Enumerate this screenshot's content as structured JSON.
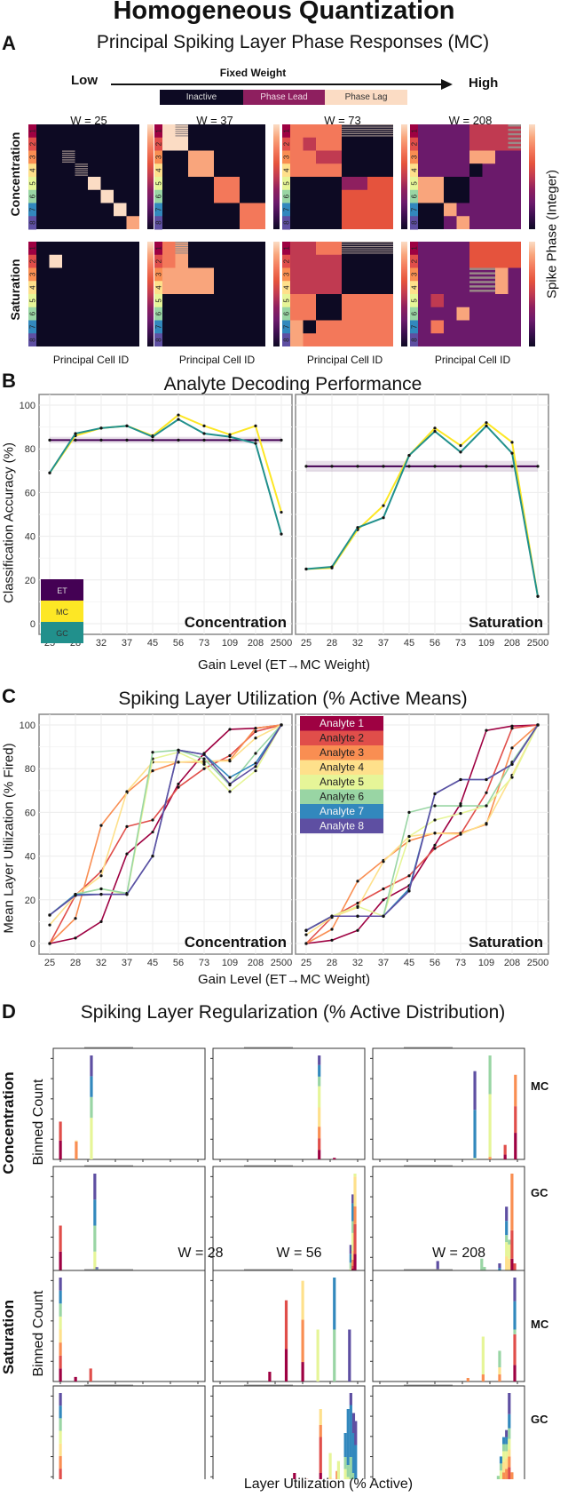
{
  "title": "Homogeneous Quantization",
  "panelA": {
    "letter": "A",
    "title": "Principal Spiking Layer Phase Responses (MC)",
    "arrow": {
      "low": "Low",
      "high": "High",
      "label": "Fixed Weight"
    },
    "state_legend": [
      {
        "label": "Inactive",
        "color": "#0d0a23"
      },
      {
        "label": "Phase Lead",
        "color": "#8e1f5f"
      },
      {
        "label": "Phase Lag",
        "color": "#fbdcc4"
      }
    ],
    "columns": [
      "W = 25",
      "W = 37",
      "W = 73",
      "W = 208"
    ],
    "rows": [
      "Concentration",
      "Saturation"
    ],
    "xlabel": "Principal Cell ID",
    "colorbar_label": "Spike Phase (Integer)",
    "analyte_ticks": [
      "1",
      "2",
      "3",
      "4",
      "5",
      "6",
      "7",
      "8"
    ]
  },
  "panelB": {
    "letter": "B",
    "title": "Analyte Decoding Performance",
    "ylabel": "Classification Accuracy (%)",
    "xlabel": "Gain Level (ET→MC Weight)",
    "legend": [
      {
        "label": "ET",
        "color": "#440154"
      },
      {
        "label": "MC",
        "color": "#fde725"
      },
      {
        "label": "GC",
        "color": "#21908c"
      }
    ]
  },
  "panelC": {
    "letter": "C",
    "title": "Spiking Layer Utilization (% Active Means)",
    "ylabel": "Mean Layer Utilization (% Fired)",
    "xlabel": "Gain Level (ET→MC Weight)",
    "legend": [
      {
        "label": "Analyte 1",
        "color": "#9e0142"
      },
      {
        "label": "Analyte 2",
        "color": "#e04e4a"
      },
      {
        "label": "Analyte 3",
        "color": "#f98e52"
      },
      {
        "label": "Analyte 4",
        "color": "#fee08b"
      },
      {
        "label": "Analyte 5",
        "color": "#e6f598"
      },
      {
        "label": "Analyte 6",
        "color": "#99d5a4"
      },
      {
        "label": "Analyte 7",
        "color": "#3288bd"
      },
      {
        "label": "Analyte 8",
        "color": "#5e4fa2"
      }
    ]
  },
  "panelD": {
    "letter": "D",
    "title": "Spiking Layer Regularization (% Active Distribution)",
    "ylabel": "Binned Count",
    "xlabel": "Layer Utilization (% Active)",
    "columns": [
      "W = 28",
      "W = 56",
      "W = 208"
    ],
    "rows": [
      "Concentration",
      "Saturation"
    ],
    "layers": [
      "MC",
      "GC"
    ]
  },
  "chart_data": [
    {
      "type": "line",
      "title": "Analyte Decoding Performance - Concentration",
      "facet": "Concentration",
      "categories": [
        "25",
        "28",
        "32",
        "37",
        "45",
        "56",
        "73",
        "109",
        "208",
        "2500"
      ],
      "xlabel": "Gain Level (ET→MC Weight)",
      "ylabel": "Classification Accuracy (%)",
      "ylim": [
        0,
        100
      ],
      "yticks": [
        0,
        20,
        40,
        60,
        80,
        100
      ],
      "grid": true,
      "legend_position": "bottom-left",
      "series": [
        {
          "name": "ET",
          "color": "#440154",
          "values": [
            84,
            84,
            84,
            84,
            84,
            84,
            84,
            84,
            84,
            84
          ],
          "band": 1.5
        },
        {
          "name": "MC",
          "color": "#fde725",
          "values": [
            69,
            86,
            89.5,
            90.5,
            86,
            95.5,
            90.5,
            86.5,
            90.5,
            51
          ]
        },
        {
          "name": "GC",
          "color": "#21908c",
          "values": [
            69,
            87,
            89.5,
            90.5,
            85.5,
            93.5,
            87,
            85.5,
            82.5,
            41
          ]
        }
      ]
    },
    {
      "type": "line",
      "title": "Analyte Decoding Performance - Saturation",
      "facet": "Saturation",
      "categories": [
        "25",
        "28",
        "32",
        "37",
        "45",
        "56",
        "73",
        "109",
        "208",
        "2500"
      ],
      "xlabel": "Gain Level (ET→MC Weight)",
      "ylabel": "Classification Accuracy (%)",
      "ylim": [
        0,
        100
      ],
      "grid": true,
      "series": [
        {
          "name": "ET",
          "color": "#440154",
          "values": [
            72,
            72,
            72,
            72,
            72,
            72,
            72,
            72,
            72,
            72
          ],
          "band": 2.5
        },
        {
          "name": "MC",
          "color": "#fde725",
          "values": [
            25,
            25.5,
            43,
            54,
            77,
            89.5,
            81.5,
            92,
            83,
            12.5
          ]
        },
        {
          "name": "GC",
          "color": "#21908c",
          "values": [
            25,
            26,
            44,
            48.5,
            77,
            88,
            78.5,
            90.5,
            78,
            12.5
          ]
        }
      ]
    },
    {
      "type": "line",
      "title": "Spiking Layer Utilization - Concentration",
      "facet": "Concentration",
      "categories": [
        "25",
        "28",
        "32",
        "37",
        "45",
        "56",
        "73",
        "109",
        "208",
        "2500"
      ],
      "xlabel": "Gain Level (ET→MC Weight)",
      "ylabel": "Mean Layer Utilization (% Fired)",
      "ylim": [
        0,
        100
      ],
      "yticks": [
        0,
        20,
        40,
        60,
        80,
        100
      ],
      "grid": true,
      "legend_position": "top-left",
      "series": [
        {
          "name": "Analyte 1",
          "color": "#9e0142",
          "values": [
            0,
            2.5,
            10,
            41,
            51,
            73,
            87,
            98,
            98.5,
            100
          ]
        },
        {
          "name": "Analyte 2",
          "color": "#e04e4a",
          "values": [
            0,
            22,
            33,
            53.5,
            56.5,
            71.5,
            80,
            86,
            97,
            100
          ]
        },
        {
          "name": "Analyte 3",
          "color": "#f98e52",
          "values": [
            0,
            11.5,
            54,
            69,
            79,
            83,
            83,
            84,
            98.5,
            100
          ]
        },
        {
          "name": "Analyte 4",
          "color": "#fee08b",
          "values": [
            8.5,
            22,
            31,
            69.5,
            83,
            83,
            83.5,
            83.5,
            94,
            100
          ]
        },
        {
          "name": "Analyte 5",
          "color": "#e6f598",
          "values": [
            13,
            22.5,
            25,
            22.5,
            84.5,
            87.5,
            82,
            69.5,
            79,
            100
          ]
        },
        {
          "name": "Analyte 6",
          "color": "#99d5a4",
          "values": [
            13,
            22.5,
            25,
            23,
            87.5,
            88.5,
            84.5,
            72.5,
            87,
            100
          ]
        },
        {
          "name": "Analyte 7",
          "color": "#3288bd",
          "values": [
            13,
            22.5,
            22.5,
            22.5,
            40,
            88.5,
            86.5,
            76,
            82.5,
            100
          ]
        },
        {
          "name": "Analyte 8",
          "color": "#5e4fa2",
          "values": [
            13,
            22,
            22.5,
            22.5,
            40,
            88.5,
            86.5,
            73,
            81,
            100
          ]
        }
      ]
    },
    {
      "type": "line",
      "title": "Spiking Layer Utilization - Saturation",
      "facet": "Saturation",
      "categories": [
        "25",
        "28",
        "32",
        "37",
        "45",
        "56",
        "73",
        "109",
        "208",
        "2500"
      ],
      "xlabel": "Gain Level (ET→MC Weight)",
      "ylabel": "Mean Layer Utilization (% Fired)",
      "ylim": [
        0,
        100
      ],
      "grid": true,
      "series": [
        {
          "name": "Analyte 1",
          "color": "#9e0142",
          "values": [
            0,
            1.5,
            6,
            20,
            26.5,
            45,
            64,
            97.5,
            99.5,
            100
          ]
        },
        {
          "name": "Analyte 2",
          "color": "#e04e4a",
          "values": [
            0,
            12,
            18.5,
            25,
            31,
            43.5,
            50,
            69,
            98.5,
            100
          ]
        },
        {
          "name": "Analyte 3",
          "color": "#f98e52",
          "values": [
            0,
            6.5,
            28.5,
            38,
            47,
            50.5,
            50.5,
            54.5,
            89.5,
            100
          ]
        },
        {
          "name": "Analyte 4",
          "color": "#fee08b",
          "values": [
            4,
            12,
            16.5,
            37.5,
            49,
            50.5,
            50,
            55,
            77,
            100
          ]
        },
        {
          "name": "Analyte 5",
          "color": "#e6f598",
          "values": [
            6,
            12.5,
            17,
            12.5,
            49,
            56.5,
            59.5,
            63,
            76,
            100
          ]
        },
        {
          "name": "Analyte 6",
          "color": "#99d5a4",
          "values": [
            6,
            12.5,
            12.5,
            12.5,
            60,
            63,
            63,
            63,
            83,
            100
          ]
        },
        {
          "name": "Analyte 7",
          "color": "#3288bd",
          "values": [
            6,
            12.5,
            12.5,
            12.5,
            25,
            68.5,
            75,
            75,
            82,
            100
          ]
        },
        {
          "name": "Analyte 8",
          "color": "#5e4fa2",
          "values": [
            6,
            12.5,
            12.5,
            12.5,
            24,
            68.5,
            75,
            75,
            82,
            100
          ]
        }
      ]
    },
    {
      "type": "bar",
      "title": "Spiking Layer Regularization (% Active Distribution)",
      "xlabel": "Layer Utilization (% Active)",
      "ylabel": "Binned Count",
      "xlim": [
        0,
        100
      ],
      "stacked": true,
      "panels": [
        {
          "condition": "Concentration",
          "layer": "MC",
          "weight": "W = 28",
          "bars": [
            {
              "x": 0,
              "stack": [
                1,
                1,
                0,
                0,
                0,
                0,
                0,
                0
              ]
            },
            {
              "x": 11.5,
              "stack": [
                0,
                0,
                1,
                0.1,
                0,
                0,
                0,
                0
              ]
            },
            {
              "x": 22.5,
              "stack": [
                0,
                0,
                0,
                0,
                2,
                1,
                1,
                1
              ]
            }
          ]
        },
        {
          "condition": "Concentration",
          "layer": "MC",
          "weight": "W = 56",
          "bars": [
            {
              "x": 72,
              "stack": [
                0.5,
                0.5,
                0.5,
                1,
                1,
                0.5,
                0.5,
                0.5
              ]
            },
            {
              "x": 83,
              "stack": [
                0.1,
                0,
                0,
                0,
                0,
                0,
                0,
                0
              ]
            }
          ]
        },
        {
          "condition": "Concentration",
          "layer": "MC",
          "weight": "W = 208",
          "bars": [
            {
              "x": 69,
              "stack": [
                0,
                0,
                0,
                0,
                0.1,
                0,
                2,
                1
              ]
            },
            {
              "x": 80,
              "stack": [
                0,
                0,
                0.1,
                0,
                2,
                1,
                0,
                0
              ]
            },
            {
              "x": 91,
              "stack": [
                0.3,
                0.5,
                0,
                0,
                0,
                0,
                0,
                0
              ]
            },
            {
              "x": 98.5,
              "stack": [
                1,
                1,
                1,
                0,
                0,
                0,
                0,
                0
              ]
            }
          ]
        },
        {
          "condition": "Concentration",
          "layer": "GC",
          "weight": "W = 28",
          "bars": [
            {
              "x": 0,
              "stack": [
                1,
                1,
                0,
                0,
                0,
                0,
                0,
                0
              ]
            },
            {
              "x": 10,
              "stack": [
                0,
                0,
                0.12,
                0,
                0,
                0,
                0,
                0
              ]
            },
            {
              "x": 11.5,
              "stack": [
                0,
                0,
                0.08,
                0,
                0,
                0,
                0,
                0
              ]
            },
            {
              "x": 13.5,
              "stack": [
                0,
                0,
                0.08,
                0,
                0,
                0,
                0,
                0
              ]
            },
            {
              "x": 25,
              "stack": [
                0,
                0,
                0,
                0,
                1,
                1,
                1,
                1
              ]
            },
            {
              "x": 26,
              "stack": [
                0,
                0,
                0,
                0,
                0.2,
                0.1,
                0.1,
                0.05
              ]
            }
          ]
        },
        {
          "condition": "Concentration",
          "layer": "GC",
          "weight": "W = 56",
          "bars": [
            {
              "x": 96,
              "stack": [
                0.1,
                0,
                0.1,
                0,
                0.1,
                0.2,
                0.3,
                0.3
              ]
            },
            {
              "x": 97.5,
              "stack": [
                0.4,
                0,
                0.2,
                0.2,
                0.6,
                0.4,
                0.5,
                0.3
              ]
            },
            {
              "x": 99,
              "stack": [
                0.8,
                1,
                0.8,
                1,
                0.2,
                0,
                0,
                0
              ]
            },
            {
              "x": 100.5,
              "stack": [
                0.2,
                0,
                0,
                0,
                0,
                0,
                0,
                0
              ]
            }
          ]
        }
      ]
    }
  ]
}
